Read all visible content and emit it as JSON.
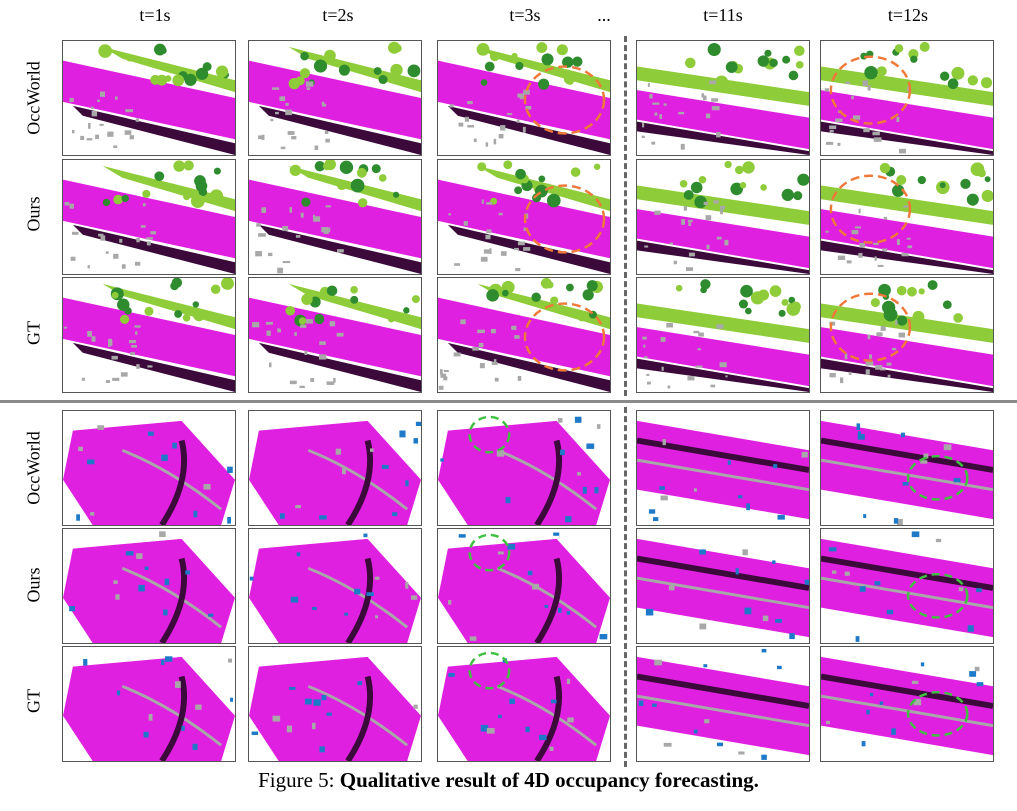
{
  "columns": [
    "t=1s",
    "t=2s",
    "t=3s",
    "...",
    "t=11s",
    "t=12s"
  ],
  "rows": [
    "OccWorld",
    "Ours",
    "GT"
  ],
  "caption": {
    "prefix": "Figure 5: ",
    "title": "Qualitative result of 4D occupancy forecasting."
  },
  "colors": {
    "drivable": "#e020e0",
    "vegetation_dark": "#2e8b2e",
    "vegetation_light": "#8fcc3a",
    "manmade": "#a8a8a8",
    "sidewalk": "#3b0a3b",
    "vehicle": "#1e7ac8",
    "highlight_orange": "#f07838",
    "highlight_green": "#40c040"
  }
}
